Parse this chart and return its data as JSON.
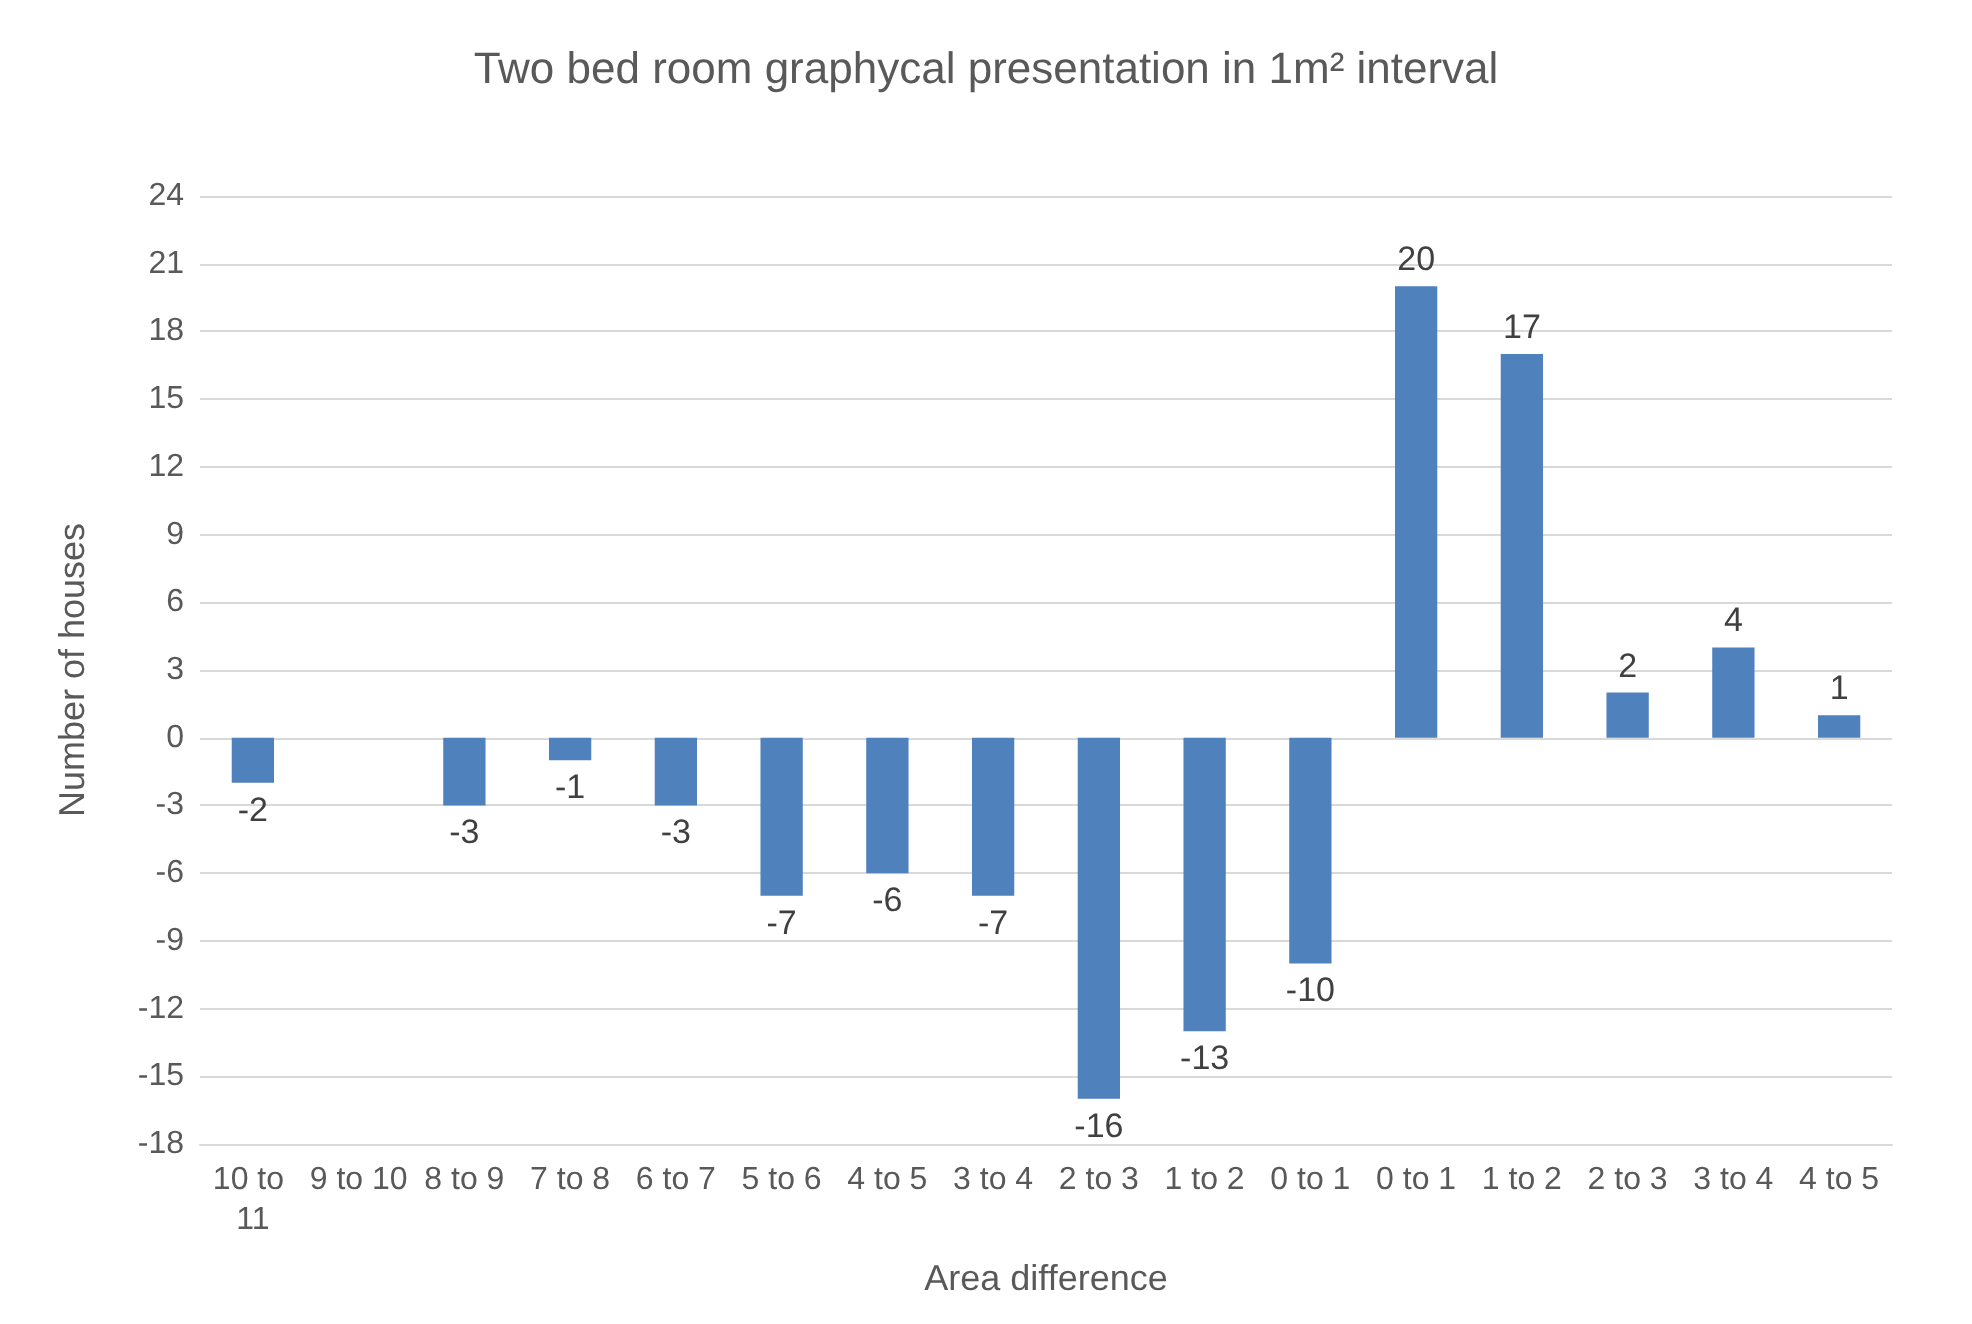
{
  "chart_data": {
    "type": "bar",
    "title": "Two bed room graphycal presentation in 1m² interval",
    "xlabel": "Area difference",
    "ylabel": "Number of houses",
    "categories": [
      "10 to 11",
      "9 to 10",
      "8 to 9",
      "7 to 8",
      "6 to 7",
      "5 to 6",
      "4 to 5",
      "3 to 4",
      "2 to 3",
      "1 to 2",
      "0 to 1",
      "0 to 1",
      "1 to 2",
      "2 to 3",
      "3 to 4",
      "4 to 5"
    ],
    "values": [
      -2,
      null,
      -3,
      -1,
      -3,
      -7,
      -6,
      -7,
      -16,
      -13,
      -10,
      20,
      17,
      2,
      4,
      1
    ],
    "color": "#4f81bd",
    "ylim": [
      -18,
      24
    ],
    "yticks": [
      -18,
      -15,
      -12,
      -9,
      -6,
      -3,
      0,
      3,
      6,
      9,
      12,
      15,
      18,
      21,
      24
    ],
    "grid": "y",
    "data_labels": true
  }
}
